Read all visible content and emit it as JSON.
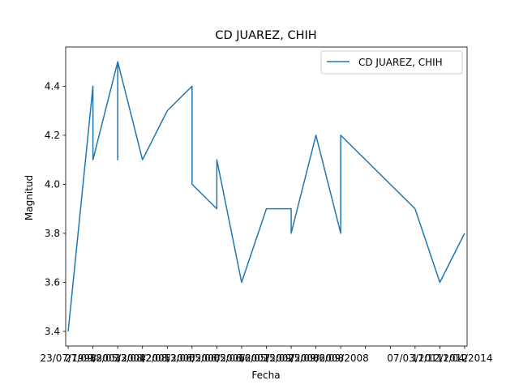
{
  "chart_data": {
    "type": "line",
    "title": "CD JUAREZ, CHIH",
    "xlabel": "Fecha",
    "ylabel": "Magnitud",
    "x_ticks": [
      "23/07/1998",
      "27/09/2003",
      "18/05/2004",
      "13/08/2005",
      "12/08/2005",
      "13/06/2006",
      "05/06/2006",
      "05/06/2007",
      "16/05/2007",
      "15/09/2008",
      "25/09/2008",
      "06/09/2008",
      "07/03/2011",
      "11/12/2012",
      "11/04/2014"
    ],
    "points": [
      {
        "x": 1,
        "y": 3.4
      },
      {
        "x": 2,
        "y": 4.4
      },
      {
        "x": 2,
        "y": 4.1
      },
      {
        "x": 3,
        "y": 4.5
      },
      {
        "x": 3,
        "y": 4.1
      },
      {
        "x": 3,
        "y": 4.5
      },
      {
        "x": 4,
        "y": 4.1
      },
      {
        "x": 5,
        "y": 4.3
      },
      {
        "x": 6,
        "y": 4.4
      },
      {
        "x": 6,
        "y": 4.0
      },
      {
        "x": 7,
        "y": 3.9
      },
      {
        "x": 7,
        "y": 4.1
      },
      {
        "x": 8,
        "y": 3.6
      },
      {
        "x": 9,
        "y": 3.9
      },
      {
        "x": 10,
        "y": 3.9
      },
      {
        "x": 10,
        "y": 3.8
      },
      {
        "x": 11,
        "y": 4.2
      },
      {
        "x": 12,
        "y": 3.8
      },
      {
        "x": 12,
        "y": 4.2
      },
      {
        "x": 15,
        "y": 3.9
      },
      {
        "x": 16,
        "y": 3.6
      },
      {
        "x": 17,
        "y": 3.8
      }
    ],
    "x_range": [
      0.9,
      17.1
    ],
    "y_range": [
      3.34,
      4.56
    ],
    "y_ticks": [
      3.4,
      3.6,
      3.8,
      4.0,
      4.2,
      4.4
    ],
    "series": [
      {
        "name": "CD JUAREZ, CHIH",
        "color": "#1f77b4"
      }
    ],
    "legend": "top-right",
    "grid": false
  }
}
